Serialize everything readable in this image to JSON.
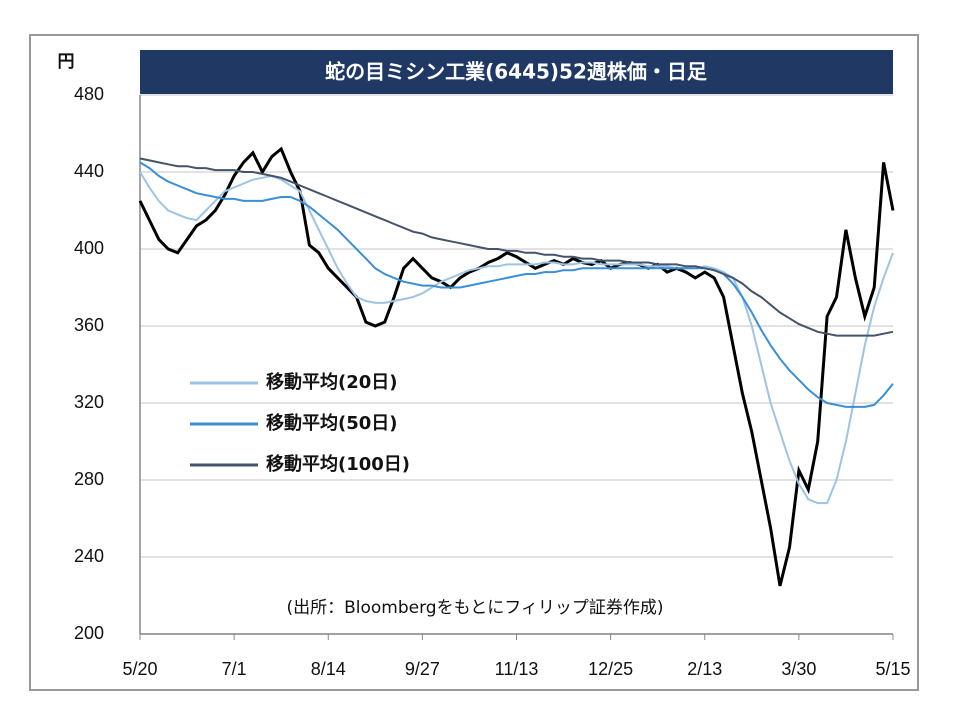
{
  "chart_data": {
    "type": "line",
    "title": "蛇の目ミシン工業(6445)52週株価・日足",
    "y_unit": "円",
    "annotation": "(出所：Bloombergをもとにフィリップ証券作成)",
    "categories": [
      "5/20",
      null,
      null,
      null,
      null,
      null,
      null,
      null,
      null,
      null,
      "7/1",
      null,
      null,
      null,
      null,
      null,
      null,
      null,
      null,
      null,
      "8/14",
      null,
      null,
      null,
      null,
      null,
      null,
      null,
      null,
      null,
      "9/27",
      null,
      null,
      null,
      null,
      null,
      null,
      null,
      null,
      null,
      "11/13",
      null,
      null,
      null,
      null,
      null,
      null,
      null,
      null,
      null,
      "12/25",
      null,
      null,
      null,
      null,
      null,
      null,
      null,
      null,
      null,
      "2/13",
      null,
      null,
      null,
      null,
      null,
      null,
      null,
      null,
      null,
      "3/30",
      null,
      null,
      null,
      null,
      null,
      null,
      null,
      null,
      null,
      "5/15"
    ],
    "ylim": [
      200,
      480
    ],
    "yticks": [
      200,
      240,
      280,
      320,
      360,
      400,
      440,
      480
    ],
    "grid": true,
    "series": [
      {
        "color": "#000000",
        "values": [
          425,
          415,
          405,
          400,
          398,
          405,
          412,
          415,
          420,
          428,
          438,
          445,
          450,
          440,
          448,
          452,
          440,
          430,
          402,
          398,
          390,
          385,
          380,
          375,
          362,
          360,
          362,
          375,
          390,
          395,
          390,
          385,
          383,
          380,
          385,
          388,
          390,
          393,
          395,
          398,
          396,
          393,
          390,
          392,
          394,
          392,
          395,
          393,
          392,
          394,
          390,
          392,
          393,
          392,
          390,
          392,
          388,
          390,
          388,
          385,
          388,
          385,
          375,
          350,
          325,
          305,
          280,
          255,
          225,
          245,
          285,
          275,
          300,
          365,
          375,
          410,
          385,
          365,
          380,
          445,
          420
        ]
      },
      {
        "name": "移動平均(20日)",
        "color": "#9dc3e6",
        "values": [
          440,
          432,
          425,
          420,
          418,
          416,
          415,
          420,
          425,
          430,
          432,
          434,
          436,
          437,
          438,
          436,
          433,
          430,
          420,
          410,
          400,
          390,
          382,
          375,
          373,
          372,
          372,
          373,
          374,
          375,
          377,
          380,
          383,
          385,
          387,
          389,
          390,
          391,
          391,
          392,
          392,
          392,
          392,
          393,
          393,
          392,
          392,
          393,
          393,
          392,
          392,
          392,
          392,
          392,
          391,
          391,
          391,
          390,
          390,
          390,
          391,
          390,
          388,
          385,
          375,
          360,
          340,
          320,
          305,
          290,
          278,
          270,
          268,
          268,
          280,
          300,
          325,
          350,
          370,
          385,
          398
        ]
      },
      {
        "name": "移動平均(50日)",
        "color": "#3b8fd6",
        "values": [
          445,
          442,
          438,
          435,
          433,
          431,
          429,
          428,
          427,
          426,
          426,
          425,
          425,
          425,
          426,
          427,
          427,
          425,
          422,
          418,
          414,
          410,
          405,
          400,
          395,
          390,
          387,
          385,
          383,
          382,
          381,
          381,
          380,
          380,
          380,
          381,
          382,
          383,
          384,
          385,
          386,
          387,
          387,
          388,
          388,
          389,
          389,
          390,
          390,
          390,
          390,
          390,
          390,
          390,
          390,
          390,
          390,
          390,
          390,
          390,
          390,
          389,
          387,
          382,
          375,
          367,
          358,
          350,
          343,
          337,
          332,
          327,
          323,
          320,
          319,
          318,
          318,
          318,
          319,
          324,
          330
        ]
      },
      {
        "name": "移動平均(100日)",
        "color": "#44546a",
        "values": [
          447,
          446,
          445,
          444,
          443,
          443,
          442,
          442,
          441,
          441,
          441,
          440,
          440,
          439,
          438,
          437,
          435,
          433,
          431,
          429,
          427,
          425,
          423,
          421,
          419,
          417,
          415,
          413,
          411,
          409,
          408,
          406,
          405,
          404,
          403,
          402,
          401,
          400,
          400,
          399,
          399,
          398,
          398,
          397,
          397,
          396,
          396,
          395,
          395,
          394,
          394,
          394,
          393,
          393,
          393,
          392,
          392,
          392,
          391,
          391,
          390,
          389,
          387,
          385,
          382,
          378,
          375,
          371,
          367,
          364,
          361,
          359,
          357,
          356,
          355,
          355,
          355,
          355,
          355,
          356,
          357
        ]
      }
    ]
  }
}
